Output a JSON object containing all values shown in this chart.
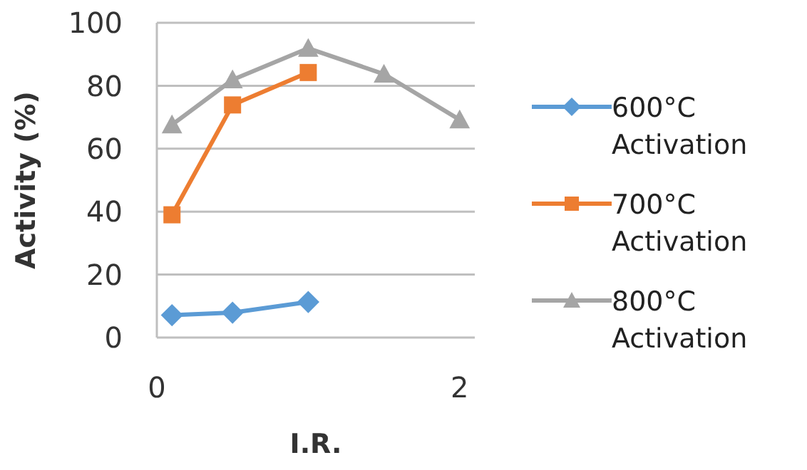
{
  "chart_data": {
    "type": "line",
    "xlabel": "I.R.",
    "ylabel": "Activity (%)",
    "xlim": [
      0,
      2.1
    ],
    "xticks": [
      0,
      2
    ],
    "ylim": [
      0,
      100
    ],
    "yticks": [
      0,
      20,
      40,
      60,
      80,
      100
    ],
    "grid": "y",
    "legend": "right",
    "line_style": "solid",
    "series": [
      {
        "name": "600°C Activation",
        "color": "#5b9bd5",
        "marker": "diamond",
        "x": [
          0.1,
          0.5,
          1
        ],
        "values": [
          7.1,
          7.9,
          11.3
        ]
      },
      {
        "name": "700°C Activation",
        "color": "#ed7d31",
        "marker": "square",
        "x": [
          0.1,
          0.5,
          1
        ],
        "values": [
          39,
          73.9,
          84.2
        ]
      },
      {
        "name": "800°C Activation",
        "color": "#a5a5a5",
        "marker": "triangle",
        "x": [
          0.1,
          0.5,
          1,
          1.5,
          2
        ],
        "values": [
          67.6,
          81.9,
          91.9,
          83.7,
          69.2
        ]
      }
    ]
  }
}
